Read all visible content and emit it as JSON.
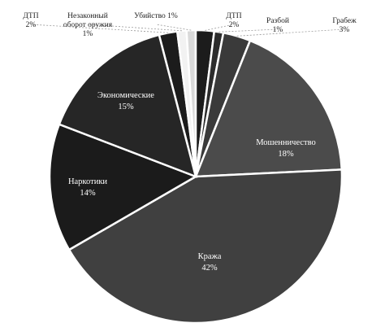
{
  "chart_data": {
    "type": "pie",
    "title": "",
    "slices": [
      {
        "name": "ДТП",
        "value": 2,
        "label": "2%",
        "color": "#1c1c1c"
      },
      {
        "name": "Незаконный оборот оружия",
        "value": 1,
        "label": "1%",
        "color": "#f2f2f2"
      },
      {
        "name": "Убийство",
        "value": 1,
        "label": "1%",
        "color": "#d9d9d9"
      },
      {
        "name": "ДТП",
        "value": 2,
        "label": "2%",
        "color": "#1c1c1c"
      },
      {
        "name": "Разбой",
        "value": 1,
        "label": "1%",
        "color": "#2c2c2c"
      },
      {
        "name": "Грабеж",
        "value": 3,
        "label": "3%",
        "color": "#3a3a3a"
      },
      {
        "name": "Мошенничество",
        "value": 18,
        "label": "18%",
        "color": "#4b4b4b"
      },
      {
        "name": "Кража",
        "value": 42,
        "label": "42%",
        "color": "#404040"
      },
      {
        "name": "Наркотики",
        "value": 14,
        "label": "14%",
        "color": "#1b1b1b"
      },
      {
        "name": "Экономические",
        "value": 15,
        "label": "15%",
        "color": "#262626"
      }
    ]
  }
}
